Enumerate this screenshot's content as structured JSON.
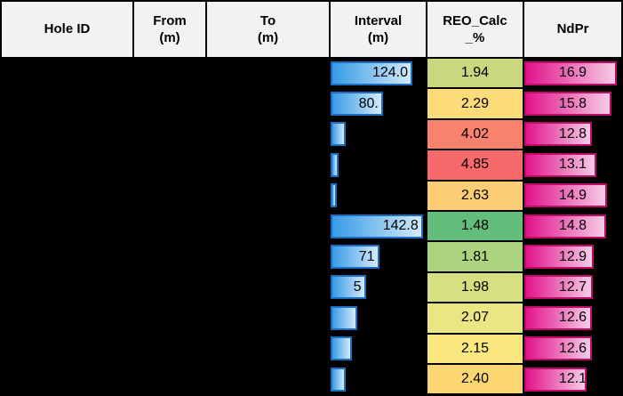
{
  "table": {
    "headers": [
      {
        "line1": "Hole ID",
        "line2": ""
      },
      {
        "line1": "From",
        "line2": "(m)"
      },
      {
        "line1": "To",
        "line2": "(m)"
      },
      {
        "line1": "Interval",
        "line2": "(m)"
      },
      {
        "line1": "REO_Calc",
        "line2": "_%"
      },
      {
        "line1": "NdPr",
        "line2": ""
      }
    ]
  },
  "chart_data": {
    "type": "table",
    "columns": [
      "Hole ID",
      "From (m)",
      "To (m)",
      "Interval (m)",
      "REO_Calc_%",
      "NdPr"
    ],
    "notes_layout": "Hole ID, From and To cells are blacked out; Interval shows blue gradient data bars; REO_Calc_% uses red-yellow-green color scale; NdPr shows magenta gradient data bars",
    "reo_color_scale": {
      "min": "#63BE7B",
      "mid": "#FFEB84",
      "max": "#F8696B"
    },
    "rows": [
      {
        "hole_id": "",
        "from": "",
        "to": "",
        "interval_label": "124.0",
        "interval_bar_pct": 86,
        "reo": "1.94",
        "reo_color": "#C9D77E",
        "ndpr": "16.9",
        "ndpr_bar_pct": 95
      },
      {
        "hole_id": "",
        "from": "",
        "to": "",
        "interval_label": "80.",
        "interval_bar_pct": 55,
        "reo": "2.29",
        "reo_color": "#FBDC79",
        "ndpr": "15.8",
        "ndpr_bar_pct": 90
      },
      {
        "hole_id": "",
        "from": "",
        "to": "",
        "interval_label": "",
        "interval_bar_pct": 16,
        "reo": "4.02",
        "reo_color": "#F8826E",
        "ndpr": "12.8",
        "ndpr_bar_pct": 70
      },
      {
        "hole_id": "",
        "from": "",
        "to": "",
        "interval_label": "",
        "interval_bar_pct": 8.5,
        "reo": "4.85",
        "reo_color": "#F8696B",
        "ndpr": "13.1",
        "ndpr_bar_pct": 74
      },
      {
        "hole_id": "",
        "from": "",
        "to": "",
        "interval_label": "",
        "interval_bar_pct": 6.5,
        "reo": "2.63",
        "reo_color": "#FCCD74",
        "ndpr": "14.9",
        "ndpr_bar_pct": 85
      },
      {
        "hole_id": "",
        "from": "",
        "to": "",
        "interval_label": "142.8",
        "interval_bar_pct": 97,
        "reo": "1.48",
        "reo_color": "#63BE7B",
        "ndpr": "14.8",
        "ndpr_bar_pct": 84
      },
      {
        "hole_id": "",
        "from": "",
        "to": "",
        "interval_label": "71",
        "interval_bar_pct": 51,
        "reo": "1.81",
        "reo_color": "#ACD47F",
        "ndpr": "12.9",
        "ndpr_bar_pct": 72
      },
      {
        "hole_id": "",
        "from": "",
        "to": "",
        "interval_label": "5",
        "interval_bar_pct": 37,
        "reo": "1.98",
        "reo_color": "#D5E081",
        "ndpr": "12.7",
        "ndpr_bar_pct": 71
      },
      {
        "hole_id": "",
        "from": "",
        "to": "",
        "interval_label": "",
        "interval_bar_pct": 28,
        "reo": "2.07",
        "reo_color": "#EBE684",
        "ndpr": "12.6",
        "ndpr_bar_pct": 70
      },
      {
        "hole_id": "",
        "from": "",
        "to": "",
        "interval_label": "",
        "interval_bar_pct": 22,
        "reo": "2.15",
        "reo_color": "#FAE87E",
        "ndpr": "12.6",
        "ndpr_bar_pct": 70
      },
      {
        "hole_id": "",
        "from": "",
        "to": "",
        "interval_label": "",
        "interval_bar_pct": 16,
        "reo": "2.40",
        "reo_color": "#FBD671",
        "ndpr": "12.1",
        "ndpr_bar_pct": 64
      }
    ]
  },
  "colors": {
    "background": "#000000",
    "header_bg": "#F2F2F2",
    "header_text": "#000000",
    "value_text": "#000000",
    "interval_bar_border": "#1B6EC2",
    "interval_bar_start": "#379BE6",
    "interval_bar_end": "#D3EAFB",
    "ndpr_bar_border": "#BE0D66",
    "ndpr_bar_start": "#E2138B",
    "ndpr_bar_end": "#F6CCE7"
  }
}
